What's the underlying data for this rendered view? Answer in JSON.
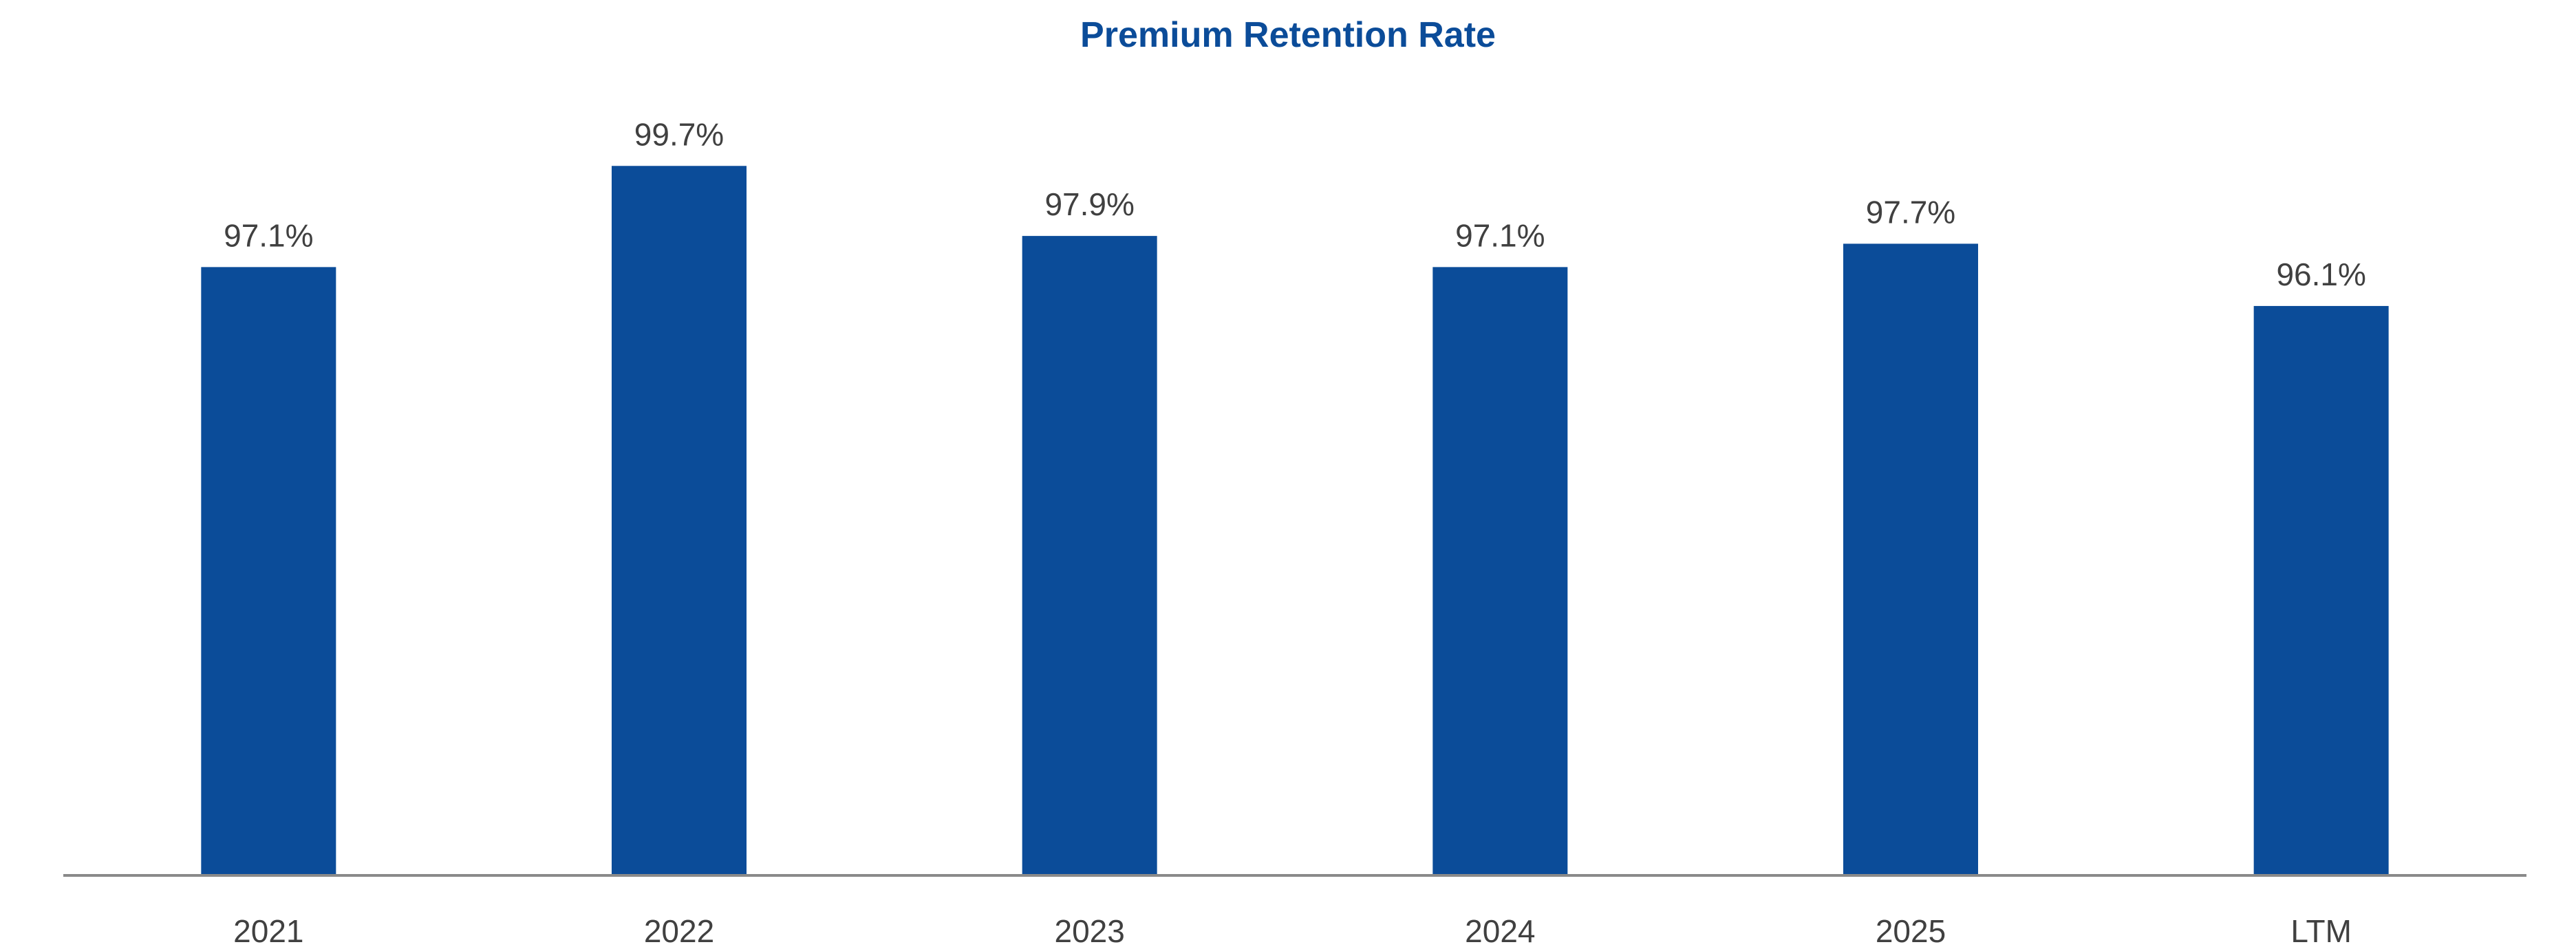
{
  "colors": {
    "bar": "#0b4c99",
    "title": "#0b4c99",
    "text": "#404040",
    "axis": "#8a8a8a"
  },
  "chart_data": {
    "type": "bar",
    "title": "Premium Retention Rate",
    "xlabel": "",
    "ylabel": "",
    "categories": [
      "2021",
      "2022",
      "2023",
      "2024",
      "2025",
      "LTM"
    ],
    "values": [
      97.1,
      99.7,
      97.9,
      97.1,
      97.7,
      96.1
    ],
    "data_labels": [
      "97.1%",
      "99.7%",
      "97.9%",
      "97.1%",
      "97.7%",
      "96.1%"
    ],
    "ylim": [
      81.5,
      100.5
    ],
    "grid": false,
    "legend": "none",
    "value_axis_visible": false
  }
}
